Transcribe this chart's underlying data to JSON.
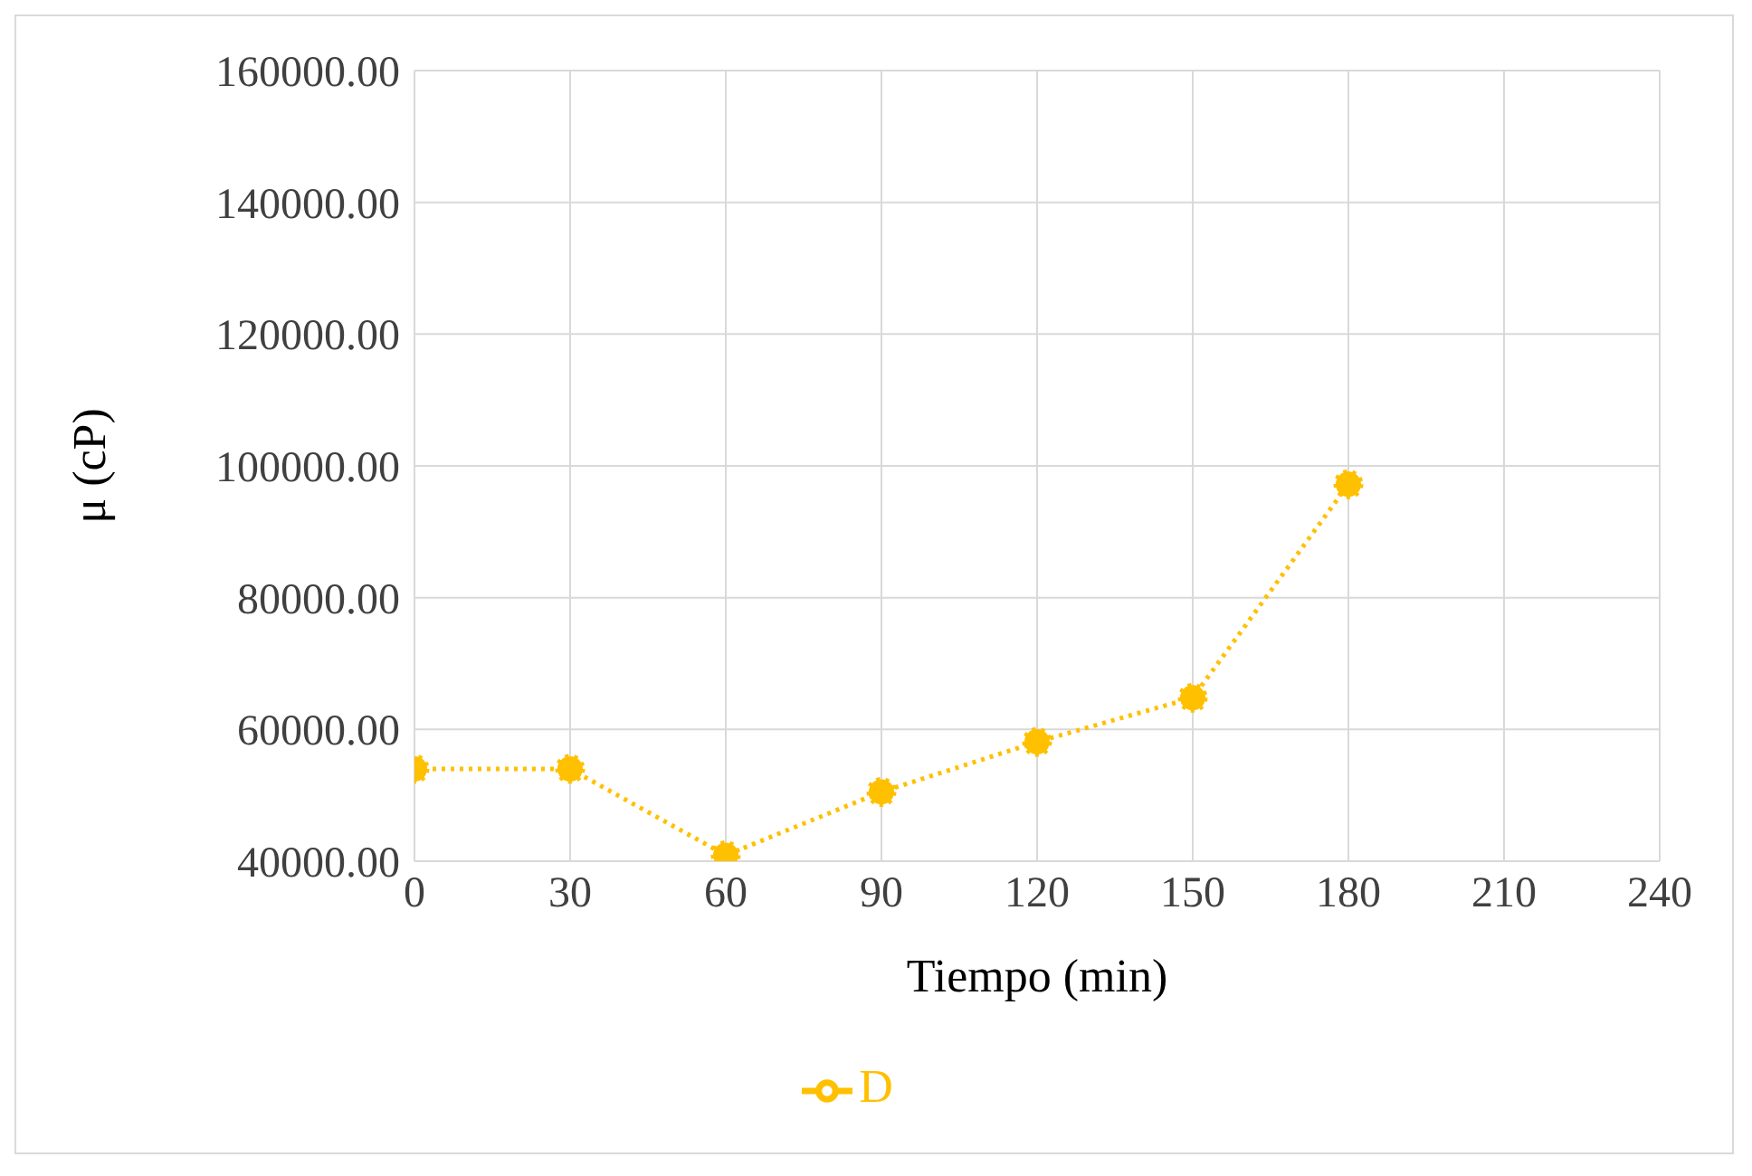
{
  "chart_data": {
    "type": "line",
    "xlabel": "Tiempo (min)",
    "ylabel": "μ (cP)",
    "x": [
      0,
      30,
      60,
      90,
      120,
      150,
      180
    ],
    "series": [
      {
        "name": "D",
        "color": "#ffc000",
        "values": [
          54000,
          54000,
          40900,
          50500,
          58100,
          64800,
          97200
        ]
      }
    ],
    "xlim": [
      0,
      240
    ],
    "xticks": [
      0,
      30,
      60,
      90,
      120,
      150,
      180,
      210,
      240
    ],
    "ylim": [
      40000,
      160000
    ],
    "yticks": [
      {
        "value": 40000,
        "label": "40000.00"
      },
      {
        "value": 60000,
        "label": "60000.00"
      },
      {
        "value": 80000,
        "label": "80000.00"
      },
      {
        "value": 100000,
        "label": "100000.00"
      },
      {
        "value": 120000,
        "label": "120000.00"
      },
      {
        "value": 140000,
        "label": "140000.00"
      },
      {
        "value": 160000,
        "label": "160000.00"
      }
    ],
    "grid": true,
    "legend": "bottom",
    "marker": "circle",
    "line_style": "dotted"
  }
}
